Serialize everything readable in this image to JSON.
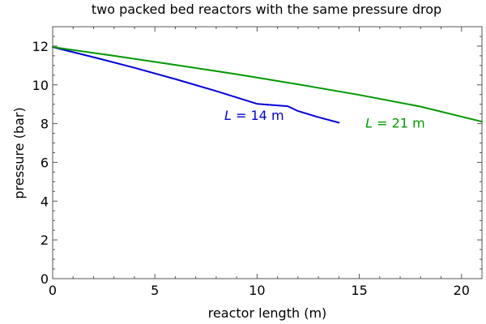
{
  "chart_data": {
    "type": "line",
    "title": "two packed bed reactors with the same pressure drop",
    "xlabel": "reactor length (m)",
    "ylabel": "pressure (bar)",
    "xlim": [
      0,
      21
    ],
    "ylim": [
      0,
      13
    ],
    "xticks": [
      0,
      5,
      10,
      15,
      20
    ],
    "yticks": [
      0,
      2,
      4,
      6,
      8,
      10,
      12
    ],
    "xminor_step": 1,
    "yminor_step": 0.5,
    "grid": false,
    "series": [
      {
        "name": "L = 14 m",
        "color": "#0000dd",
        "x": [
          0,
          2,
          4,
          6,
          8,
          10,
          11.5,
          12,
          13,
          14
        ],
        "y": [
          11.95,
          11.43,
          10.88,
          10.3,
          9.68,
          9.02,
          8.9,
          8.65,
          8.33,
          8.05
        ]
      },
      {
        "name": "L = 21 m",
        "color": "#009900",
        "x": [
          0,
          3,
          6,
          9,
          12,
          15,
          18,
          21
        ],
        "y": [
          11.95,
          11.5,
          11.03,
          10.55,
          10.03,
          9.48,
          8.88,
          8.1
        ]
      }
    ],
    "annotations": [
      {
        "italic": "L",
        "text": " = 14 m",
        "color": "#0000dd",
        "x": 8.4,
        "y": 8.2
      },
      {
        "italic": "L",
        "text": " = 21 m",
        "color": "#009900",
        "x": 15.3,
        "y": 7.8
      }
    ]
  }
}
